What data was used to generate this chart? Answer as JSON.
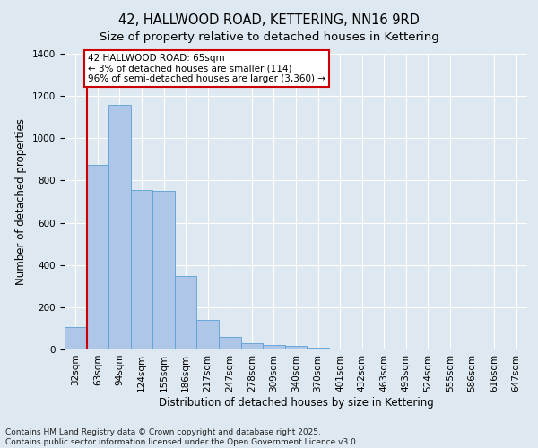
{
  "title": "42, HALLWOOD ROAD, KETTERING, NN16 9RD",
  "subtitle": "Size of property relative to detached houses in Kettering",
  "xlabel": "Distribution of detached houses by size in Kettering",
  "ylabel": "Number of detached properties",
  "footnote1": "Contains HM Land Registry data © Crown copyright and database right 2025.",
  "footnote2": "Contains public sector information licensed under the Open Government Licence v3.0.",
  "categories": [
    "32sqm",
    "63sqm",
    "94sqm",
    "124sqm",
    "155sqm",
    "186sqm",
    "217sqm",
    "247sqm",
    "278sqm",
    "309sqm",
    "340sqm",
    "370sqm",
    "401sqm",
    "432sqm",
    "463sqm",
    "493sqm",
    "524sqm",
    "555sqm",
    "586sqm",
    "616sqm",
    "647sqm"
  ],
  "values": [
    105,
    875,
    1160,
    755,
    750,
    350,
    140,
    60,
    30,
    20,
    15,
    10,
    5,
    0,
    0,
    0,
    0,
    0,
    0,
    0,
    0
  ],
  "bar_color": "#aec6e8",
  "bar_edge_color": "#5a9fd4",
  "vline_x": 0.5,
  "vline_color": "#cc0000",
  "annotation_text": "42 HALLWOOD ROAD: 65sqm\n← 3% of detached houses are smaller (114)\n96% of semi-detached houses are larger (3,360) →",
  "annotation_box_color": "#cc0000",
  "annotation_bg_color": "#ffffff",
  "ylim": [
    0,
    1400
  ],
  "yticks": [
    0,
    200,
    400,
    600,
    800,
    1000,
    1200,
    1400
  ],
  "background_color": "#dde8f0",
  "plot_bg_color": "#dde8f0",
  "grid_color": "#ffffff",
  "title_fontsize": 10.5,
  "subtitle_fontsize": 9.5,
  "axis_label_fontsize": 8.5,
  "tick_fontsize": 7.5,
  "annotation_fontsize": 7.5,
  "footnote_fontsize": 6.5
}
